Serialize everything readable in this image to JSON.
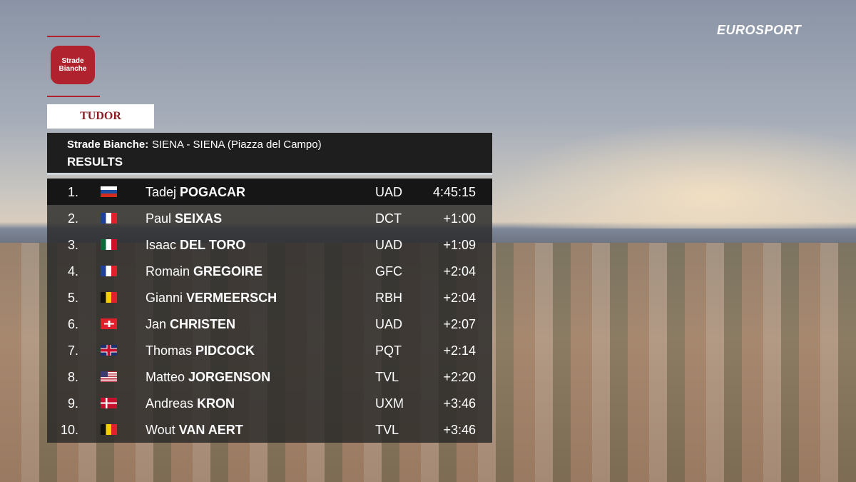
{
  "broadcaster": "EUROSPORT",
  "event_logo": {
    "name": "Strade Bianche",
    "sponsor": "TUDOR"
  },
  "header": {
    "race": "Strade Bianche:",
    "route": "SIENA - SIENA (Piazza del Campo)",
    "title": "RESULTS"
  },
  "table": {
    "rows": [
      [
        "1.",
        "Tadej",
        "POGACAR",
        "UAD",
        "4:45:15"
      ],
      [
        "2.",
        "Paul",
        "SEIXAS",
        "DCT",
        "+1:00"
      ],
      [
        "3.",
        "Isaac",
        "DEL TORO",
        "UAD",
        "+1:09"
      ],
      [
        "4.",
        "Romain",
        "GREGOIRE",
        "GFC",
        "+2:04"
      ],
      [
        "5.",
        "Gianni",
        "VERMEERSCH",
        "RBH",
        "+2:04"
      ],
      [
        "6.",
        "Jan",
        "CHRISTEN",
        "UAD",
        "+2:07"
      ],
      [
        "7.",
        "Thomas",
        "PIDCOCK",
        "PQT",
        "+2:14"
      ],
      [
        "8.",
        "Matteo",
        "JORGENSON",
        "TVL",
        "+2:20"
      ],
      [
        "9.",
        "Andreas",
        "KRON",
        "UXM",
        "+3:46"
      ],
      [
        "10.",
        "Wout",
        "VAN AERT",
        "TVL",
        "+3:46"
      ]
    ]
  }
}
